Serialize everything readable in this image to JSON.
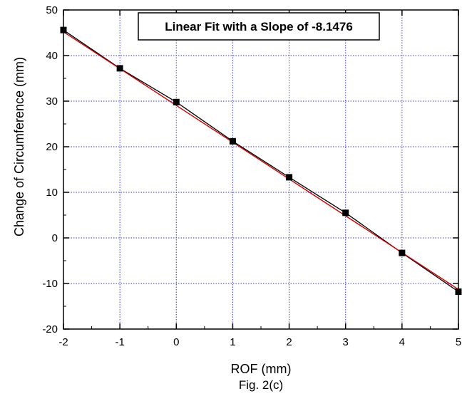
{
  "chart_data": {
    "type": "scatter",
    "xlabel": "ROF (mm)",
    "ylabel": "Change of Circumference (mm)",
    "caption": "Fig. 2(c)",
    "annotation": "Linear Fit with a Slope of -8.1476",
    "xlim": [
      -2,
      5
    ],
    "ylim": [
      -20,
      50
    ],
    "x_ticks": [
      -2,
      -1,
      0,
      1,
      2,
      3,
      4,
      5
    ],
    "y_ticks": [
      -20,
      -10,
      0,
      10,
      20,
      30,
      40,
      50
    ],
    "x_tick_labels": [
      "-2",
      "-1",
      "0",
      "1",
      "2",
      "3",
      "4",
      "5"
    ],
    "y_tick_labels": [
      "-20",
      "-10",
      "0",
      "10",
      "20",
      "30",
      "40",
      "50"
    ],
    "grid": true,
    "series": [
      {
        "type": "line+markers",
        "x": [
          -2,
          -1,
          0,
          1,
          2,
          3,
          4,
          5
        ],
        "y": [
          45.6,
          37.2,
          29.8,
          21.2,
          13.3,
          5.5,
          -3.3,
          -11.8
        ],
        "color": "#000000",
        "marker": "square"
      },
      {
        "type": "line",
        "x": [
          -2,
          5
        ],
        "y": [
          45.2,
          -11.3
        ],
        "color": "#cc0000"
      }
    ],
    "colors": {
      "grid": "#3a3ad0",
      "axis": "#000000",
      "data": "#000000",
      "fit": "#cc0000"
    }
  }
}
